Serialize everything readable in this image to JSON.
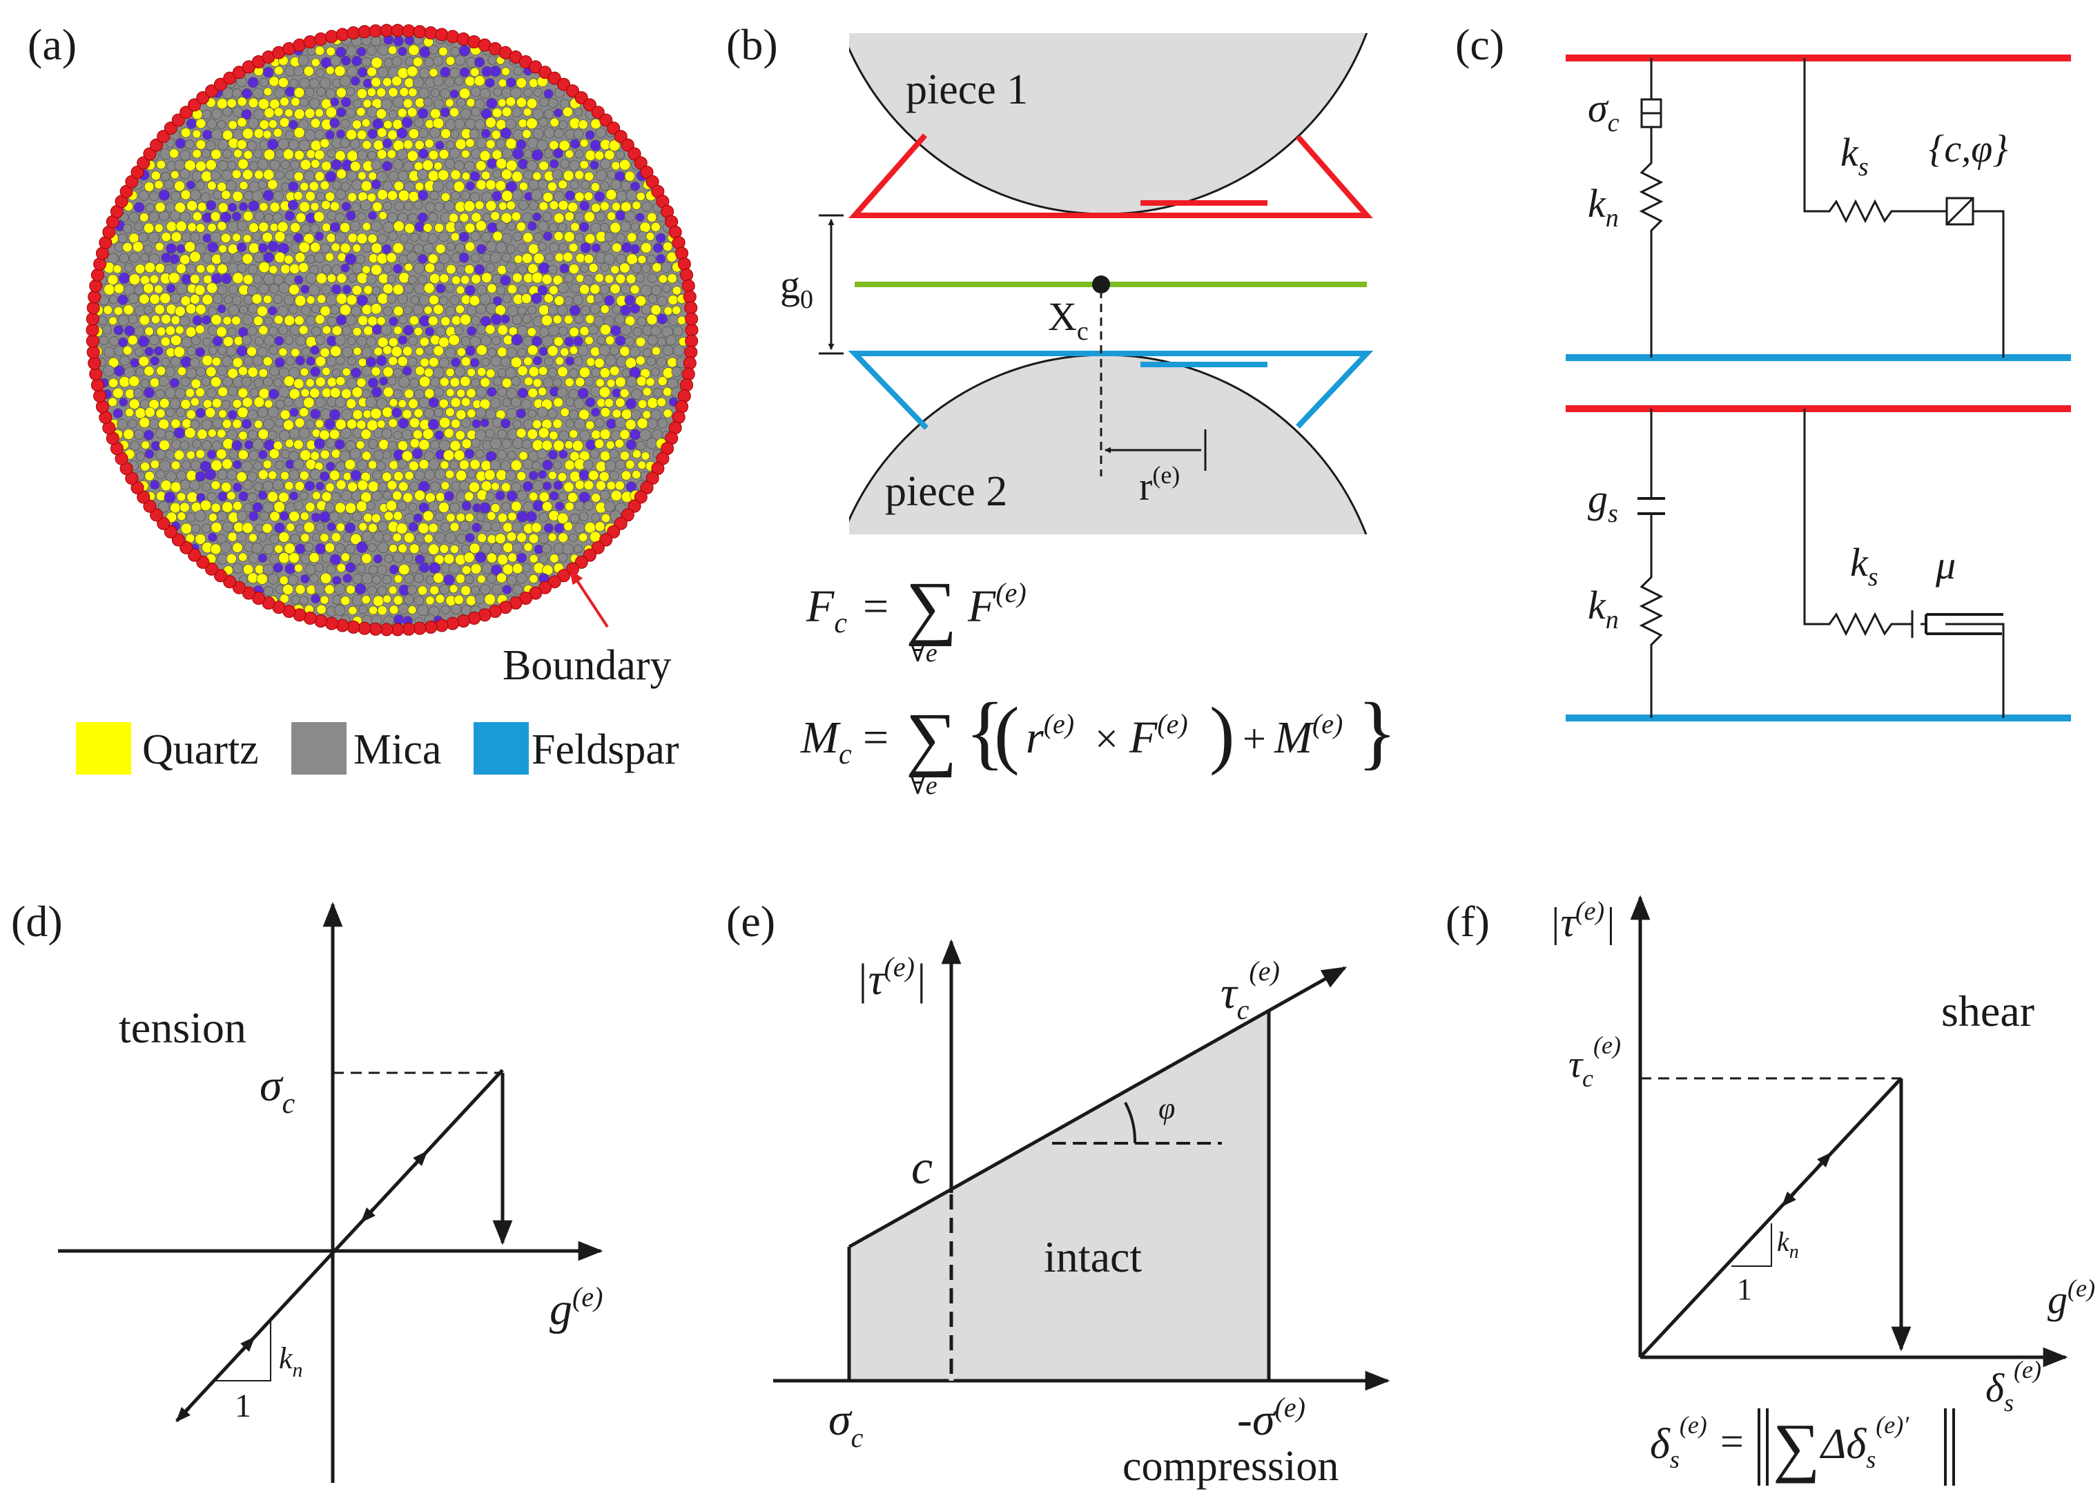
{
  "colors": {
    "boundary": "#e41e26",
    "quartz": "#ffff00",
    "mica": "#8a8a8a",
    "feldspar": "#1a9ad6",
    "particle_purple": "#5a2ad8",
    "piece_fill": "#dcdcdc",
    "top_edge": "#ef1c24",
    "mid_plane": "#7dbb1f",
    "bottom_edge": "#1a9ad6",
    "ink": "#1a1a1a",
    "shade": "#dcdcdc"
  },
  "panel_a": {
    "label": "(a)",
    "boundary_label": "Boundary",
    "legend": [
      {
        "name": "Quartz",
        "color": "#ffff00"
      },
      {
        "name": "Mica",
        "color": "#8a8a8a"
      },
      {
        "name": "Feldspar",
        "color": "#1a9ad6"
      }
    ]
  },
  "panel_b": {
    "label": "(b)",
    "piece1": "piece 1",
    "piece2": "piece 2",
    "gap_label": "g",
    "gap_sub": "0",
    "center_label": "X",
    "center_sub": "c",
    "radius_label": "r",
    "radius_sup": "(e)",
    "eq1_lhs": "F",
    "eq1_lhs_sub": "c",
    "eq1_sum": "∑",
    "eq1_sum_sub": "∀e",
    "eq1_rhs": "F",
    "eq1_rhs_sup": "(e)",
    "eq2_lhs": "M",
    "eq2_lhs_sub": "c",
    "eq2_sum": "∑",
    "eq2_sum_sub": "∀e",
    "eq2_r": "r",
    "eq2_r_sup": "(e)",
    "eq2_times": "×",
    "eq2_F": "F",
    "eq2_F_sup": "(e)",
    "eq2_plus": "+",
    "eq2_M": "M",
    "eq2_M_sup": "(e)"
  },
  "panel_c": {
    "label": "(c)",
    "sigma": "σ",
    "sigma_sub": "c",
    "kn_top": "k",
    "kn_top_sub": "n",
    "ks_top": "k",
    "ks_top_sub": "s",
    "cphi": "{c,φ}",
    "gs": "g",
    "gs_sub": "s",
    "kn_bot": "k",
    "kn_bot_sub": "n",
    "ks_bot": "k",
    "ks_bot_sub": "s",
    "mu": "μ"
  },
  "panel_d": {
    "label": "(d)",
    "region": "tension",
    "sigma": "σ",
    "sigma_sub": "c",
    "x_axis": "g",
    "x_axis_sup": "(e)",
    "kn": "k",
    "kn_sub": "n",
    "one": "1"
  },
  "panel_e": {
    "label": "(e)",
    "y_axis": "|τ",
    "y_axis_sup": "(e)",
    "y_axis_close": "|",
    "tau_c": "τ",
    "tau_c_sub": "c",
    "tau_c_sup": "(e)",
    "phi": "φ",
    "c": "c",
    "region": "intact",
    "sigma_c": "σ",
    "sigma_c_sub": "c",
    "neg_sigma": "-σ",
    "neg_sigma_sup": "(e)",
    "compression": "compression"
  },
  "panel_f": {
    "label": "(f)",
    "y_axis": "|τ",
    "y_axis_sup": "(e)",
    "y_axis_close": "|",
    "region": "shear",
    "tau_c": "τ",
    "tau_c_sub": "c",
    "tau_c_sup": "(e)",
    "g_label": "g",
    "g_sup": "(e)",
    "delta_axis": "δ",
    "delta_axis_sub": "s",
    "delta_axis_sup": "(e)",
    "kn": "k",
    "kn_sub": "n",
    "one": "1",
    "eq_lhs": "δ",
    "eq_lhs_sub": "s",
    "eq_lhs_sup": "(e)",
    "eq_equals": "=",
    "eq_sum": "∑",
    "eq_delta": "Δδ",
    "eq_delta_sub": "s",
    "eq_delta_sup": "(e)′"
  }
}
